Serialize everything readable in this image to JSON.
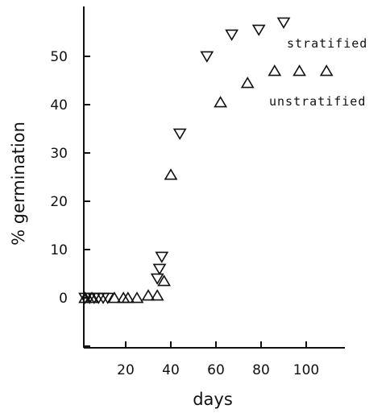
{
  "chart_data": {
    "type": "scatter",
    "xlabel": "days",
    "ylabel": "% germination",
    "xlim": [
      0,
      120
    ],
    "ylim": [
      -10,
      60
    ],
    "xticks": [
      20,
      40,
      60,
      80,
      100
    ],
    "yticks": [
      0,
      10,
      20,
      30,
      40,
      50
    ],
    "grid": false,
    "series": [
      {
        "name": "stratified",
        "marker": "triangle-down",
        "points": [
          [
            2,
            0
          ],
          [
            4,
            0
          ],
          [
            6,
            0
          ],
          [
            8,
            0
          ],
          [
            10,
            0
          ],
          [
            12,
            0
          ],
          [
            34,
            4
          ],
          [
            35,
            6
          ],
          [
            36,
            8.5
          ],
          [
            44,
            34
          ],
          [
            56,
            50
          ],
          [
            67,
            54.5
          ],
          [
            79,
            55.5
          ],
          [
            90,
            57
          ]
        ]
      },
      {
        "name": "unstratified",
        "marker": "triangle-up",
        "points": [
          [
            2,
            0
          ],
          [
            5,
            0
          ],
          [
            15,
            0
          ],
          [
            19,
            0
          ],
          [
            21,
            0
          ],
          [
            25,
            0
          ],
          [
            30,
            0.5
          ],
          [
            34,
            0.5
          ],
          [
            37,
            3.5
          ],
          [
            40,
            25.5
          ],
          [
            62,
            40.5
          ],
          [
            74,
            44.5
          ],
          [
            86,
            47
          ],
          [
            97,
            47
          ],
          [
            109,
            47
          ]
        ]
      }
    ]
  }
}
